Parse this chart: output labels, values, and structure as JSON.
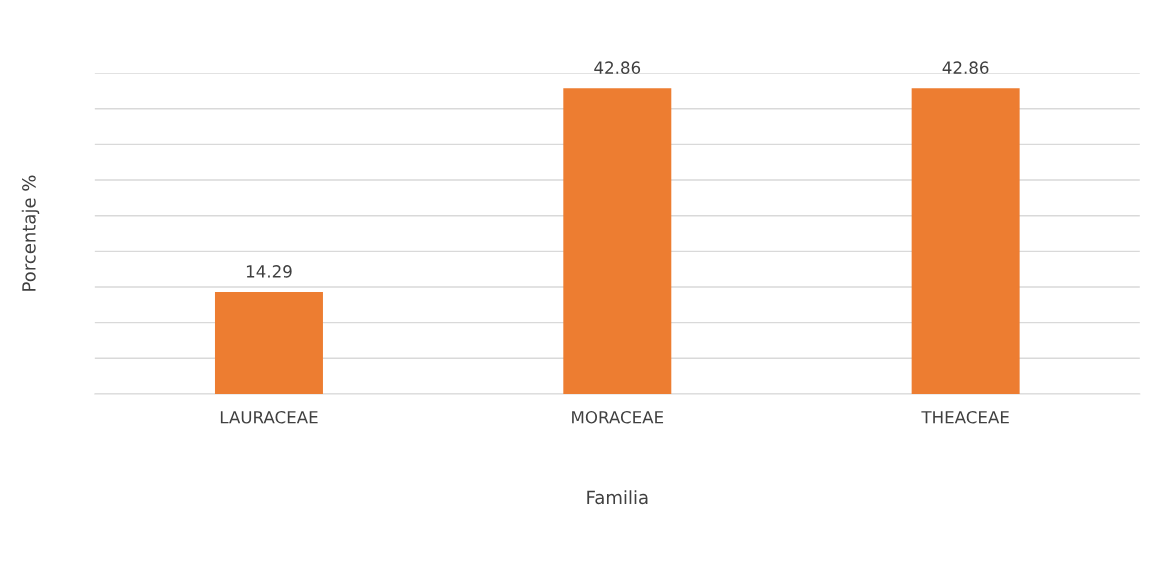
{
  "chart_data": {
    "type": "bar",
    "xlabel": "Familia",
    "ylabel": "Porcentaje %",
    "categories": [
      "LAURACEAE",
      "MORACEAE",
      "THEACEAE"
    ],
    "values": [
      14.29,
      42.86,
      42.86
    ],
    "color": "#ed7d31",
    "ylim": [
      0,
      45
    ],
    "yticks": [
      {
        "value": 0,
        "label": null
      },
      {
        "value": 5,
        "label": null
      },
      {
        "value": 10,
        "label": null
      },
      {
        "value": 15,
        "label": null
      },
      {
        "value": 20,
        "label": null
      },
      {
        "value": 25,
        "label": null
      },
      {
        "value": 30,
        "label": null
      },
      {
        "value": 35,
        "label": null
      },
      {
        "value": 40,
        "label": null
      },
      {
        "value": 45,
        "label": null
      }
    ],
    "grid": "y",
    "data_labels": true,
    "tick_labels": "x",
    "legend": false
  }
}
